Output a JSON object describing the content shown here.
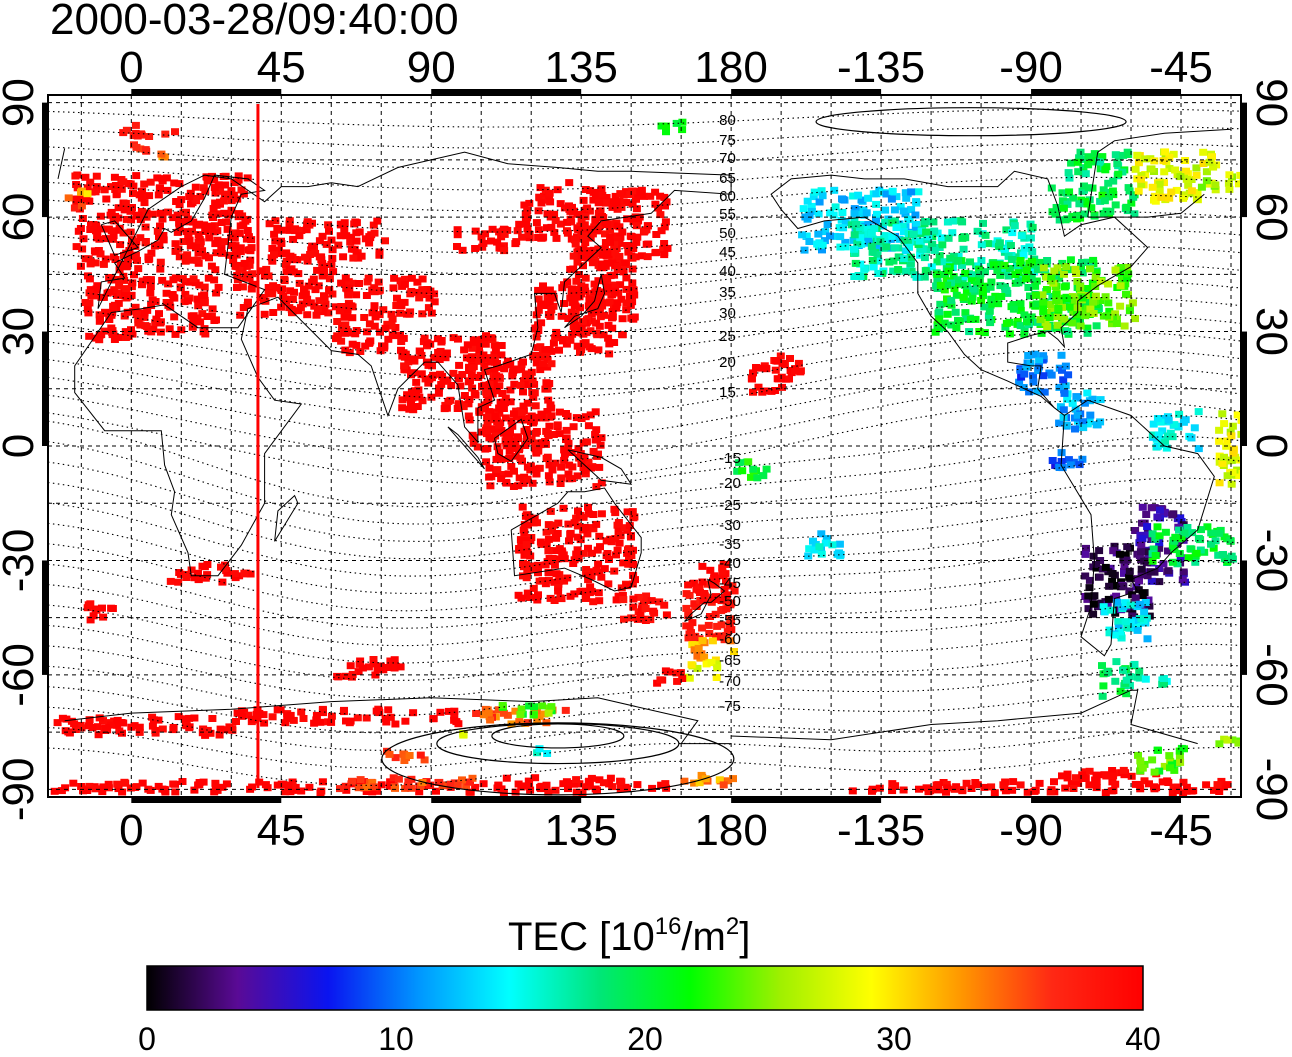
{
  "timestamp": "2000-03-28/09:40:00",
  "axes": {
    "lon_ticks": [
      0,
      45,
      90,
      135,
      180,
      -135,
      -90,
      -45
    ],
    "lat_ticks": [
      90,
      60,
      30,
      0,
      -30,
      -60,
      -90
    ],
    "lon_range": [
      -25,
      333
    ],
    "lat_range": [
      -92,
      92
    ]
  },
  "colorbar": {
    "title_prefix": "TEC  [10",
    "title_exp1": "16",
    "title_mid": "/m",
    "title_exp2": "2",
    "title_suffix": "]",
    "min": 0,
    "max": 40,
    "tick_labels": [
      "0",
      "10",
      "20",
      "30",
      "40"
    ],
    "colors": [
      "#000000",
      "#5a0a96",
      "#0a14f0",
      "#0096ff",
      "#00ffff",
      "#00e678",
      "#00ff00",
      "#a0f000",
      "#ffff00",
      "#ff9600",
      "#ff2814",
      "#ff0000"
    ]
  },
  "contour_labels": [
    "80",
    "75",
    "70",
    "65",
    "60",
    "55",
    "50",
    "45",
    "40",
    "35",
    "30",
    "25",
    "20",
    "15",
    "-15",
    "-20",
    "-25",
    "-30",
    "-35",
    "-40",
    "-45",
    "-50",
    "-55",
    "-60",
    "-65",
    "-70",
    "-75"
  ],
  "marker_line": {
    "lon": 38,
    "color": "#ff0000"
  },
  "chart_data": {
    "type": "heatmap",
    "title": "2000-03-28/09:40:00",
    "colorbar_label": "TEC  [10^16/m^2]",
    "value_range": [
      0,
      40
    ],
    "xlim": [
      -25,
      333
    ],
    "ylim": [
      -92,
      92
    ],
    "note_keys": "patches: [lon_min, lon_max, lat_min, lat_max, tec]",
    "patches": [
      [
        -18,
        35,
        47,
        72,
        40
      ],
      [
        -15,
        0,
        28,
        50,
        40
      ],
      [
        0,
        25,
        30,
        45,
        40
      ],
      [
        -4,
        12,
        82,
        85,
        38
      ],
      [
        -5,
        5,
        78,
        80,
        36
      ],
      [
        5,
        12,
        76,
        78,
        33
      ],
      [
        -20,
        -15,
        63,
        66,
        36
      ],
      [
        -18,
        -12,
        66,
        68,
        31
      ],
      [
        60,
        90,
        35,
        45,
        40
      ],
      [
        30,
        60,
        35,
        50,
        40
      ],
      [
        40,
        75,
        50,
        60,
        40
      ],
      [
        95,
        115,
        52,
        58,
        40
      ],
      [
        115,
        140,
        55,
        70,
        40
      ],
      [
        130,
        160,
        50,
        68,
        40
      ],
      [
        120,
        145,
        25,
        45,
        40
      ],
      [
        130,
        150,
        30,
        55,
        40
      ],
      [
        100,
        125,
        0,
        25,
        40
      ],
      [
        105,
        140,
        -10,
        10,
        40
      ],
      [
        80,
        110,
        10,
        30,
        40
      ],
      [
        60,
        80,
        25,
        35,
        40
      ],
      [
        115,
        150,
        -40,
        -15,
        40
      ],
      [
        145,
        160,
        -45,
        -38,
        39
      ],
      [
        165,
        180,
        -50,
        -35,
        38
      ],
      [
        167,
        180,
        -55,
        -50,
        32
      ],
      [
        165,
        175,
        -60,
        -55,
        28
      ],
      [
        155,
        165,
        -62,
        -58,
        40
      ],
      [
        165,
        178,
        -40,
        -30,
        40
      ],
      [
        10,
        35,
        -35,
        -30,
        40
      ],
      [
        -15,
        -5,
        -45,
        -40,
        40
      ],
      [
        60,
        80,
        -60,
        -55,
        40
      ],
      [
        -25,
        30,
        -75,
        -70,
        40
      ],
      [
        30,
        100,
        -72,
        -68,
        40
      ],
      [
        100,
        130,
        -72,
        -68,
        35
      ],
      [
        110,
        125,
        -70,
        -67,
        22
      ],
      [
        122,
        128,
        -70,
        -67,
        24
      ],
      [
        95,
        100,
        -77,
        -74,
        29
      ],
      [
        119,
        125,
        -80,
        -78,
        16
      ],
      [
        75,
        90,
        -82,
        -79,
        36
      ],
      [
        162,
        180,
        -88,
        -85,
        33
      ],
      [
        -25,
        140,
        -90,
        -87,
        40
      ],
      [
        60,
        110,
        -89,
        -86,
        36
      ],
      [
        110,
        160,
        -89,
        -86,
        40
      ],
      [
        215,
        330,
        -90,
        -87,
        40
      ],
      [
        278,
        310,
        -88,
        -84,
        40
      ],
      [
        200,
        235,
        52,
        68,
        13
      ],
      [
        215,
        270,
        45,
        60,
        17
      ],
      [
        240,
        290,
        30,
        50,
        20
      ],
      [
        270,
        300,
        32,
        48,
        24
      ],
      [
        275,
        300,
        60,
        70,
        20
      ],
      [
        280,
        300,
        70,
        78,
        19
      ],
      [
        300,
        325,
        65,
        78,
        28
      ],
      [
        320,
        333,
        68,
        72,
        26
      ],
      [
        265,
        280,
        15,
        25,
        10
      ],
      [
        275,
        290,
        5,
        15,
        12
      ],
      [
        305,
        320,
        0,
        10,
        15
      ],
      [
        275,
        285,
        -5,
        0,
        9
      ],
      [
        300,
        315,
        -35,
        -15,
        4
      ],
      [
        285,
        305,
        -45,
        -25,
        2
      ],
      [
        305,
        330,
        -30,
        -20,
        20
      ],
      [
        290,
        305,
        -50,
        -40,
        14
      ],
      [
        290,
        300,
        -65,
        -55,
        19
      ],
      [
        300,
        310,
        -62,
        -58,
        17
      ],
      [
        300,
        315,
        -85,
        -78,
        23
      ],
      [
        325,
        333,
        -78,
        -75,
        26
      ],
      [
        325,
        333,
        -10,
        10,
        28
      ],
      [
        200,
        212,
        -28,
        -22,
        14
      ],
      [
        180,
        190,
        -8,
        -3,
        21
      ],
      [
        185,
        200,
        15,
        25,
        40
      ],
      [
        157,
        165,
        83,
        86,
        21
      ]
    ]
  }
}
